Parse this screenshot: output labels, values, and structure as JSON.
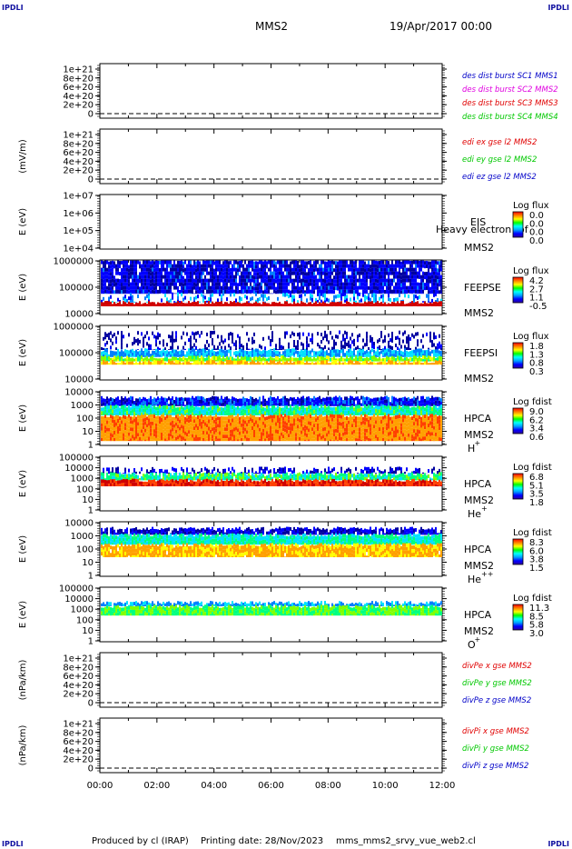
{
  "header": {
    "corner_label": "IPDLI",
    "mission": "MMS2",
    "date": "19/Apr/2017 00:00"
  },
  "footer": {
    "produced_by": "Produced by cl (IRAP)",
    "printing_date": "Printing date: 28/Nov/2023",
    "filename": "mms_mms2_srvy_vue_web2.cl"
  },
  "chart_data": {
    "type": "multi-panel-timeseries",
    "x_axis": {
      "ticks": [
        "00:00",
        "02:00",
        "04:00",
        "06:00",
        "08:00",
        "10:00",
        "12:00"
      ],
      "range_hours": [
        0,
        12
      ]
    },
    "panels": [
      {
        "id": "des",
        "type": "line",
        "ylabel": "",
        "ylim": [
          0,
          1.2e+21
        ],
        "yticks": [
          "1e+21",
          "8e+20",
          "6e+20",
          "4e+20",
          "2e+20",
          "0"
        ],
        "legend": [
          {
            "label": "des dist burst SC1 MMS1",
            "color": "#0000c8"
          },
          {
            "label": "des dist burst SC2 MMS2",
            "color": "#e000e0"
          },
          {
            "label": "des dist burst SC3 MMS3",
            "color": "#e00000"
          },
          {
            "label": "des dist burst SC4 MMS4",
            "color": "#00c800"
          }
        ]
      },
      {
        "id": "edi",
        "type": "line",
        "ylabel": "(mV/m)",
        "ylim": [
          0,
          1.2e+21
        ],
        "yticks": [
          "1e+21",
          "8e+20",
          "6e+20",
          "4e+20",
          "2e+20",
          "0"
        ],
        "legend": [
          {
            "label": "edi ex gse l2 MMS2",
            "color": "#e00000"
          },
          {
            "label": "edi ey gse l2 MMS2",
            "color": "#00c800"
          },
          {
            "label": "edi ez gse l2 MMS2",
            "color": "#0000c8"
          }
        ]
      },
      {
        "id": "eis",
        "type": "heatmap",
        "ylabel": "E (eV)",
        "scale": "log",
        "yticks": [
          "1e+07",
          "1e+06",
          "1e+05",
          "1e+04"
        ],
        "inst": [
          "EIS",
          "MMS2"
        ],
        "overlay": "Heavy electron tof",
        "cbar_title": "Log flux",
        "cbar_ticks": [
          "0.0",
          "0.0",
          "0.0",
          "0.0"
        ]
      },
      {
        "id": "feepse",
        "type": "heatmap",
        "ylabel": "E (eV)",
        "scale": "log",
        "yticks": [
          "1000000",
          "100000",
          "10000"
        ],
        "inst": [
          "FEEPSE",
          "MMS2"
        ],
        "cbar_title": "Log flux",
        "cbar_ticks": [
          "4.2",
          "2.7",
          "1.1",
          "-0.5"
        ]
      },
      {
        "id": "feepsi",
        "type": "heatmap",
        "ylabel": "E (eV)",
        "scale": "log",
        "yticks": [
          "1000000",
          "100000",
          "10000"
        ],
        "inst": [
          "FEEPSI",
          "MMS2"
        ],
        "cbar_title": "Log flux",
        "cbar_ticks": [
          "1.8",
          "1.3",
          "0.8",
          "0.3"
        ]
      },
      {
        "id": "hpca_h",
        "type": "heatmap",
        "ylabel": "E (eV)",
        "scale": "log",
        "yticks": [
          "10000",
          "1000",
          "100",
          "10",
          "1"
        ],
        "inst": [
          "HPCA",
          "MMS2"
        ],
        "species": "H",
        "charge": "+",
        "cbar_title": "Log fdist",
        "cbar_ticks": [
          "9.0",
          "6.2",
          "3.4",
          "0.6"
        ]
      },
      {
        "id": "hpca_he",
        "type": "heatmap",
        "ylabel": "E (eV)",
        "scale": "log",
        "yticks": [
          "100000",
          "10000",
          "1000",
          "100",
          "10",
          "1"
        ],
        "inst": [
          "HPCA",
          "MMS2"
        ],
        "species": "He",
        "charge": "+",
        "cbar_title": "Log fdist",
        "cbar_ticks": [
          "6.8",
          "5.1",
          "3.5",
          "1.8"
        ]
      },
      {
        "id": "hpca_hepp",
        "type": "heatmap",
        "ylabel": "E (eV)",
        "scale": "log",
        "yticks": [
          "10000",
          "1000",
          "100",
          "10",
          "1"
        ],
        "inst": [
          "HPCA",
          "MMS2"
        ],
        "species": "He",
        "charge": "++",
        "cbar_title": "Log fdist",
        "cbar_ticks": [
          "8.3",
          "6.0",
          "3.8",
          "1.5"
        ]
      },
      {
        "id": "hpca_o",
        "type": "heatmap",
        "ylabel": "E (eV)",
        "scale": "log",
        "yticks": [
          "100000",
          "10000",
          "1000",
          "100",
          "10",
          "1"
        ],
        "inst": [
          "HPCA",
          "MMS2"
        ],
        "species": "O",
        "charge": "+",
        "cbar_title": "Log fdist",
        "cbar_ticks": [
          "11.3",
          "8.5",
          "5.8",
          "3.0"
        ]
      },
      {
        "id": "divpe",
        "type": "line",
        "ylabel": "(nPa/km)",
        "ylim": [
          0,
          1.2e+21
        ],
        "yticks": [
          "1e+21",
          "8e+20",
          "6e+20",
          "4e+20",
          "2e+20",
          "0"
        ],
        "legend": [
          {
            "label": "divPe x gse MMS2",
            "color": "#e00000"
          },
          {
            "label": "divPe y gse MMS2",
            "color": "#00c800"
          },
          {
            "label": "divPe z gse MMS2",
            "color": "#0000c8"
          }
        ]
      },
      {
        "id": "divpi",
        "type": "line",
        "ylabel": "(nPa/km)",
        "ylim": [
          0,
          1.2e+21
        ],
        "yticks": [
          "1e+21",
          "8e+20",
          "6e+20",
          "4e+20",
          "2e+20",
          "0"
        ],
        "legend": [
          {
            "label": "divPi x gse MMS2",
            "color": "#e00000"
          },
          {
            "label": "divPi y gse MMS2",
            "color": "#00c800"
          },
          {
            "label": "divPi z gse MMS2",
            "color": "#0000c8"
          }
        ]
      }
    ]
  }
}
